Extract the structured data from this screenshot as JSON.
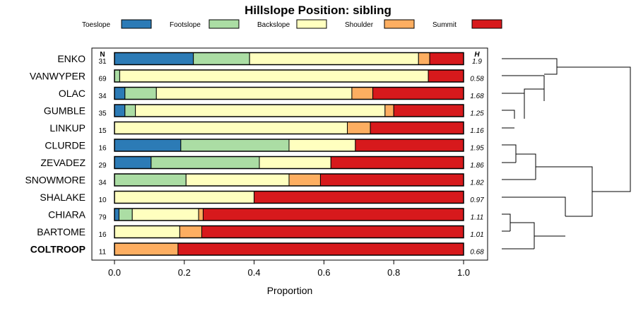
{
  "chart_data": {
    "type": "bar",
    "orientation": "horizontal-stacked",
    "title": "Hillslope Position: sibling",
    "xlabel": "Proportion",
    "ylabel": "",
    "xlim": [
      0,
      1
    ],
    "xticks": [
      "0.0",
      "0.2",
      "0.4",
      "0.6",
      "0.8",
      "1.0"
    ],
    "n_header": "N",
    "h_header": "H",
    "legend": [
      {
        "name": "Toeslope",
        "color": "#2c7bb6"
      },
      {
        "name": "Footslope",
        "color": "#abdda4"
      },
      {
        "name": "Backslope",
        "color": "#ffffbf"
      },
      {
        "name": "Shoulder",
        "color": "#fdae61"
      },
      {
        "name": "Summit",
        "color": "#d7191c"
      }
    ],
    "categories": [
      "ENKO",
      "VANWYPER",
      "OLAC",
      "GUMBLE",
      "LINKUP",
      "CLURDE",
      "ZEVADEZ",
      "SNOWMORE",
      "SHALAKE",
      "CHIARA",
      "BARTOME",
      "COLTROOP"
    ],
    "highlight": "COLTROOP",
    "n": [
      "31",
      "69",
      "34",
      "35",
      "15",
      "16",
      "29",
      "34",
      "10",
      "79",
      "16",
      "11"
    ],
    "h": [
      "1.9",
      "0.58",
      "1.68",
      "1.25",
      "1.16",
      "1.95",
      "1.86",
      "1.82",
      "0.97",
      "1.11",
      "1.01",
      "0.68"
    ],
    "series": [
      {
        "name": "Toeslope",
        "values": [
          0.226,
          0.0,
          0.03,
          0.03,
          0.0,
          0.19,
          0.105,
          0.0,
          0.0,
          0.013,
          0.0,
          0.0
        ]
      },
      {
        "name": "Footslope",
        "values": [
          0.161,
          0.015,
          0.09,
          0.03,
          0.0,
          0.31,
          0.31,
          0.205,
          0.0,
          0.038,
          0.0,
          0.0
        ]
      },
      {
        "name": "Backslope",
        "values": [
          0.484,
          0.884,
          0.56,
          0.715,
          0.667,
          0.19,
          0.205,
          0.295,
          0.4,
          0.19,
          0.187,
          0.0
        ]
      },
      {
        "name": "Shoulder",
        "values": [
          0.032,
          0.0,
          0.06,
          0.025,
          0.066,
          0.0,
          0.0,
          0.09,
          0.0,
          0.013,
          0.063,
          0.182
        ]
      },
      {
        "name": "Summit",
        "values": [
          0.097,
          0.101,
          0.26,
          0.2,
          0.267,
          0.31,
          0.38,
          0.41,
          0.6,
          0.746,
          0.75,
          0.818
        ]
      }
    ]
  }
}
